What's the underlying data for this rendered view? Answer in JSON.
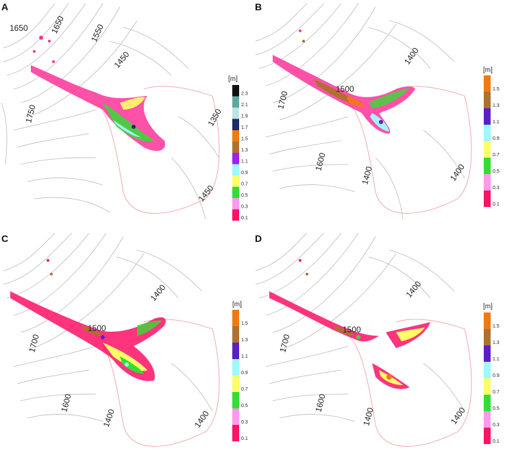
{
  "panels": [
    {
      "label": "A",
      "contour_labels": [
        "1650",
        "1650",
        "1550",
        "1450",
        "1750",
        "1350",
        "1450"
      ],
      "legend": {
        "unit": "[m]",
        "ticks": [
          "2.3",
          "2.1",
          "1.9",
          "1.7",
          "1.5",
          "1.3",
          "1.1",
          "0.9",
          "0.7",
          "0.5",
          "0.3",
          "0.1"
        ],
        "colors": [
          "#111111",
          "#5fa8a0",
          "#bfe3e0",
          "#1a2a6c",
          "#f07a10",
          "#b07030",
          "#a020f0",
          "#9ff8ff",
          "#ffff66",
          "#33dd33",
          "#ff99ee",
          "#ff1166"
        ]
      }
    },
    {
      "label": "B",
      "contour_labels": [
        "1400",
        "1500",
        "1700",
        "1600",
        "1400",
        "1400"
      ],
      "legend": {
        "unit": "[m]",
        "ticks": [
          "1.5",
          "1.3",
          "1.1",
          "0.9",
          "0.7",
          "0.5",
          "0.3",
          "0.1"
        ],
        "colors": [
          "#f07a10",
          "#b07030",
          "#5a20c8",
          "#9ff8ff",
          "#ffff66",
          "#33dd33",
          "#ff99ee",
          "#ff1166"
        ]
      }
    },
    {
      "label": "C",
      "contour_labels": [
        "1400",
        "1500",
        "1700",
        "1600",
        "1400",
        "1400"
      ],
      "legend": {
        "unit": "[m]",
        "ticks": [
          "1.5",
          "1.3",
          "1.1",
          "0.9",
          "0.7",
          "0.5",
          "0.3",
          "0.1"
        ],
        "colors": [
          "#f07a10",
          "#b07030",
          "#5a20c8",
          "#9ff8ff",
          "#ffff66",
          "#33dd33",
          "#ff99ee",
          "#ff1166"
        ]
      }
    },
    {
      "label": "D",
      "contour_labels": [
        "1400",
        "1500",
        "1700",
        "1600",
        "1400",
        "1400"
      ],
      "legend": {
        "unit": "[m]",
        "ticks": [
          "1.5",
          "1.3",
          "1.1",
          "0.9",
          "0.7",
          "0.5",
          "0.3",
          "0.1"
        ],
        "colors": [
          "#f07a10",
          "#b07030",
          "#5a20c8",
          "#9ff8ff",
          "#ffff66",
          "#33dd33",
          "#ff99ee",
          "#ff1166"
        ]
      }
    }
  ]
}
